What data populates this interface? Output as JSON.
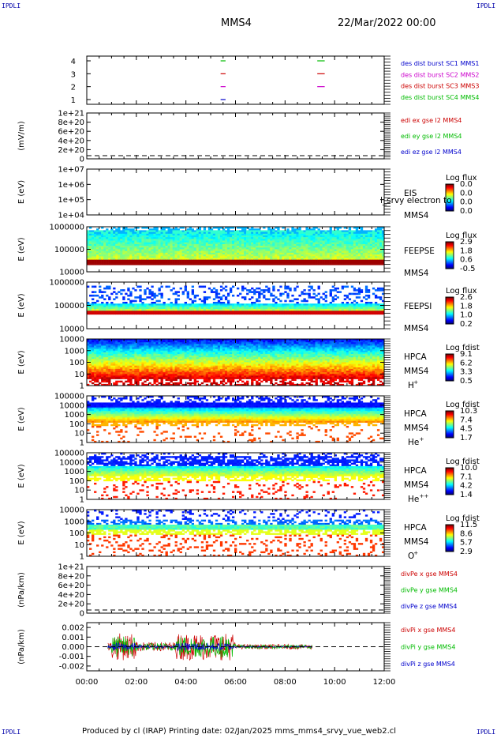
{
  "corner_label": "IPDLI",
  "header": {
    "spacecraft": "MMS4",
    "date": "22/Mar/2022 00:00"
  },
  "footer": "Produced by cl (IRAP)   Printing date: 02/Jan/2025   mms_mms4_srvy_vue_web2.cl",
  "chart_data": {
    "type": "stacked-time-series",
    "x_ticks": [
      "00:00",
      "02:00",
      "04:00",
      "06:00",
      "08:00",
      "10:00",
      "12:00"
    ],
    "xlim_hours": [
      0,
      12
    ],
    "panels": [
      {
        "id": "burst",
        "type": "timeline",
        "yticks": [
          "4",
          "3",
          "2",
          "1"
        ],
        "legend": [
          {
            "text": "des dist burst SC1 MMS1",
            "color": "#0000cc"
          },
          {
            "text": "des dist burst SC2 MMS2",
            "color": "#cc00cc"
          },
          {
            "text": "des dist burst SC3 MMS3",
            "color": "#cc0000"
          },
          {
            "text": "des dist burst SC4 MMS4",
            "color": "#00bb00"
          }
        ],
        "segments": [
          {
            "sc": 4,
            "x": [
              5.4,
              5.6
            ],
            "color": "#00bb00"
          },
          {
            "sc": 4,
            "x": [
              9.3,
              9.6
            ],
            "color": "#00bb00"
          },
          {
            "sc": 3,
            "x": [
              5.4,
              5.6
            ],
            "color": "#cc0000"
          },
          {
            "sc": 3,
            "x": [
              9.3,
              9.6
            ],
            "color": "#cc0000"
          },
          {
            "sc": 2,
            "x": [
              5.4,
              5.6
            ],
            "color": "#cc00cc"
          },
          {
            "sc": 2,
            "x": [
              9.3,
              9.6
            ],
            "color": "#cc00cc"
          },
          {
            "sc": 1,
            "x": [
              5.4,
              5.6
            ],
            "color": "#0000cc"
          }
        ]
      },
      {
        "id": "edi",
        "type": "line",
        "ylabel": "(mV/m)",
        "yticks": [
          "1e+21",
          "8e+20",
          "6e+20",
          "4e+20",
          "2e+20",
          "0"
        ],
        "legend": [
          {
            "text": "edi ex gse l2 MMS4",
            "color": "#cc0000"
          },
          {
            "text": "edi ey gse l2 MMS4",
            "color": "#00bb00"
          },
          {
            "text": "edi ez gse l2 MMS4",
            "color": "#0000cc"
          }
        ]
      },
      {
        "id": "eis",
        "type": "spectrogram",
        "ylabel": "E (eV)",
        "yticks": [
          "1e+07",
          "1e+06",
          "1e+05",
          "1e+04"
        ],
        "labels": [
          "EIS",
          "MMS4"
        ],
        "overlay_text": "l_srvy electron to",
        "cbar_title": "Log flux",
        "cbar_ticks": [
          "0.0",
          "0.0",
          "0.0",
          "0.0"
        ]
      },
      {
        "id": "feepse",
        "type": "spectrogram",
        "ylabel": "E (eV)",
        "yticks": [
          "1000000",
          "100000",
          "10000"
        ],
        "labels": [
          "FEEPSE",
          "MMS4"
        ],
        "cbar_title": "Log flux",
        "cbar_ticks": [
          "2.9",
          "1.8",
          "0.6",
          "-0.5"
        ]
      },
      {
        "id": "feepsi",
        "type": "spectrogram",
        "ylabel": "E (eV)",
        "yticks": [
          "1000000",
          "100000",
          "10000"
        ],
        "labels": [
          "FEEPSI",
          "MMS4"
        ],
        "cbar_title": "Log flux",
        "cbar_ticks": [
          "2.6",
          "1.8",
          "1.0",
          "0.2"
        ]
      },
      {
        "id": "hpca_h",
        "type": "spectrogram",
        "ylabel": "E (eV)",
        "yticks": [
          "10000",
          "1000",
          "100",
          "10",
          "1"
        ],
        "labels": [
          "HPCA",
          "MMS4"
        ],
        "species": "H",
        "species_sup": "+",
        "cbar_title": "Log fdist",
        "cbar_ticks": [
          "9.1",
          "6.2",
          "3.3",
          "0.5"
        ]
      },
      {
        "id": "hpca_he",
        "type": "spectrogram",
        "ylabel": "E (eV)",
        "yticks": [
          "100000",
          "10000",
          "1000",
          "100",
          "10",
          "1"
        ],
        "labels": [
          "HPCA",
          "MMS4"
        ],
        "species": "He",
        "species_sup": "+",
        "cbar_title": "Log fdist",
        "cbar_ticks": [
          "10.3",
          "7.4",
          "4.5",
          "1.7"
        ]
      },
      {
        "id": "hpca_hepp",
        "type": "spectrogram",
        "ylabel": "E (eV)",
        "yticks": [
          "100000",
          "10000",
          "1000",
          "100",
          "10",
          "1"
        ],
        "labels": [
          "HPCA",
          "MMS4"
        ],
        "species": "He",
        "species_sup": "++",
        "cbar_title": "Log fdist",
        "cbar_ticks": [
          "10.0",
          "7.1",
          "4.2",
          "1.4"
        ]
      },
      {
        "id": "hpca_o",
        "type": "spectrogram",
        "ylabel": "E (eV)",
        "yticks": [
          "10000",
          "1000",
          "100",
          "10",
          "1"
        ],
        "labels": [
          "HPCA",
          "MMS4"
        ],
        "species": "O",
        "species_sup": "+",
        "cbar_title": "Log fdist",
        "cbar_ticks": [
          "11.5",
          "8.6",
          "5.7",
          "2.9"
        ]
      },
      {
        "id": "divpe",
        "type": "line",
        "ylabel": "(nPa/km)",
        "yticks": [
          "1e+21",
          "8e+20",
          "6e+20",
          "4e+20",
          "2e+20",
          "0"
        ],
        "legend": [
          {
            "text": "divPe x gse MMS4",
            "color": "#cc0000"
          },
          {
            "text": "divPe y gse MMS4",
            "color": "#00bb00"
          },
          {
            "text": "divPe z gse MMS4",
            "color": "#0000cc"
          }
        ]
      },
      {
        "id": "divpi",
        "type": "line",
        "ylabel": "(nPa/km)",
        "yticks": [
          "0.002",
          "0.001",
          "0.000",
          "-0.001",
          "-0.002"
        ],
        "ylim": [
          -0.0025,
          0.0025
        ],
        "data_span_hours": [
          0.85,
          9.1
        ],
        "legend": [
          {
            "text": "divPi x gse MMS4",
            "color": "#cc0000"
          },
          {
            "text": "divPi y gse MMS4",
            "color": "#00bb00"
          },
          {
            "text": "divPi z gse MMS4",
            "color": "#0000cc"
          }
        ]
      }
    ]
  }
}
